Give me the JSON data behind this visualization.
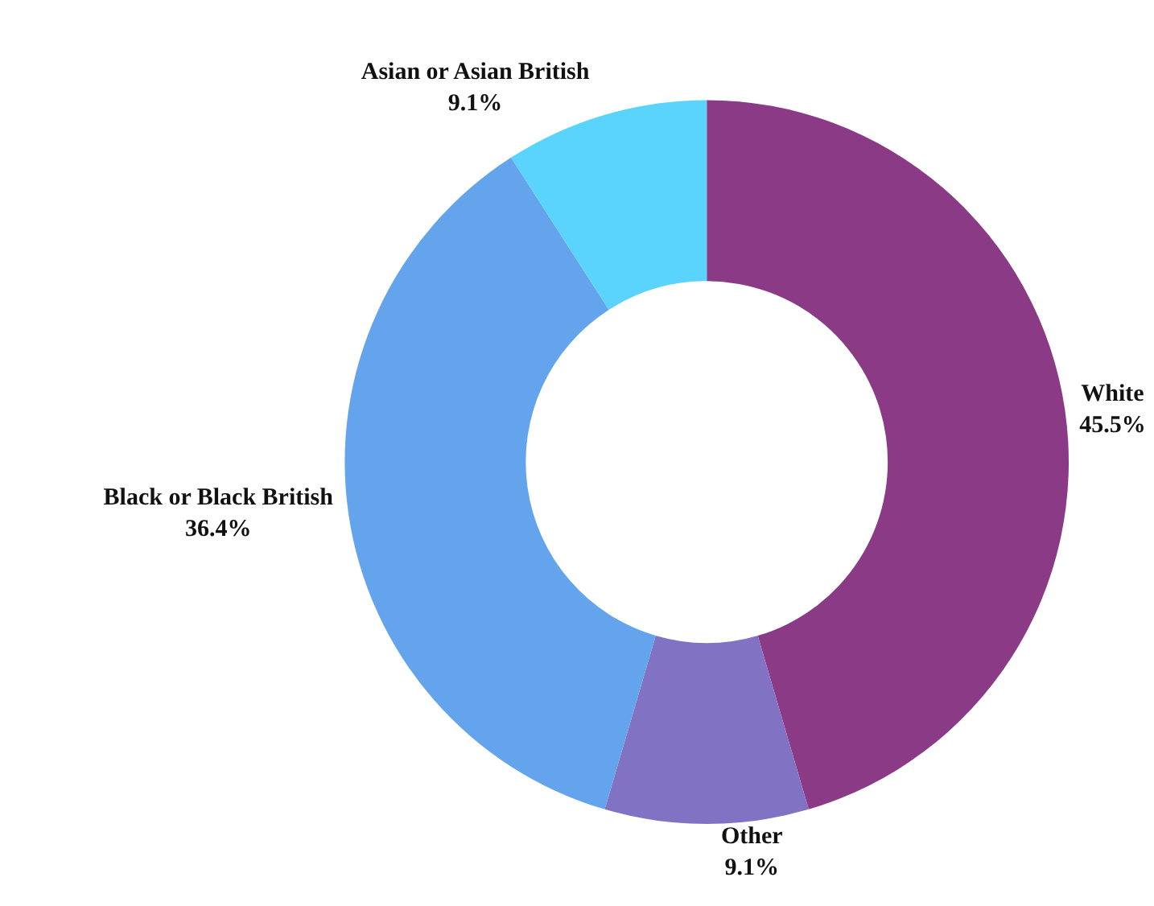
{
  "chart_data": {
    "type": "donut",
    "categories": [
      "White",
      "Other",
      "Black or Black British",
      "Asian or Asian British"
    ],
    "values": [
      45.5,
      9.1,
      36.4,
      9.1
    ],
    "value_labels": [
      "45.5%",
      "9.1%",
      "36.4%",
      "9.1%"
    ],
    "colors": [
      "#8b3a86",
      "#8272c4",
      "#63a4ec",
      "#5ad3fd"
    ]
  }
}
